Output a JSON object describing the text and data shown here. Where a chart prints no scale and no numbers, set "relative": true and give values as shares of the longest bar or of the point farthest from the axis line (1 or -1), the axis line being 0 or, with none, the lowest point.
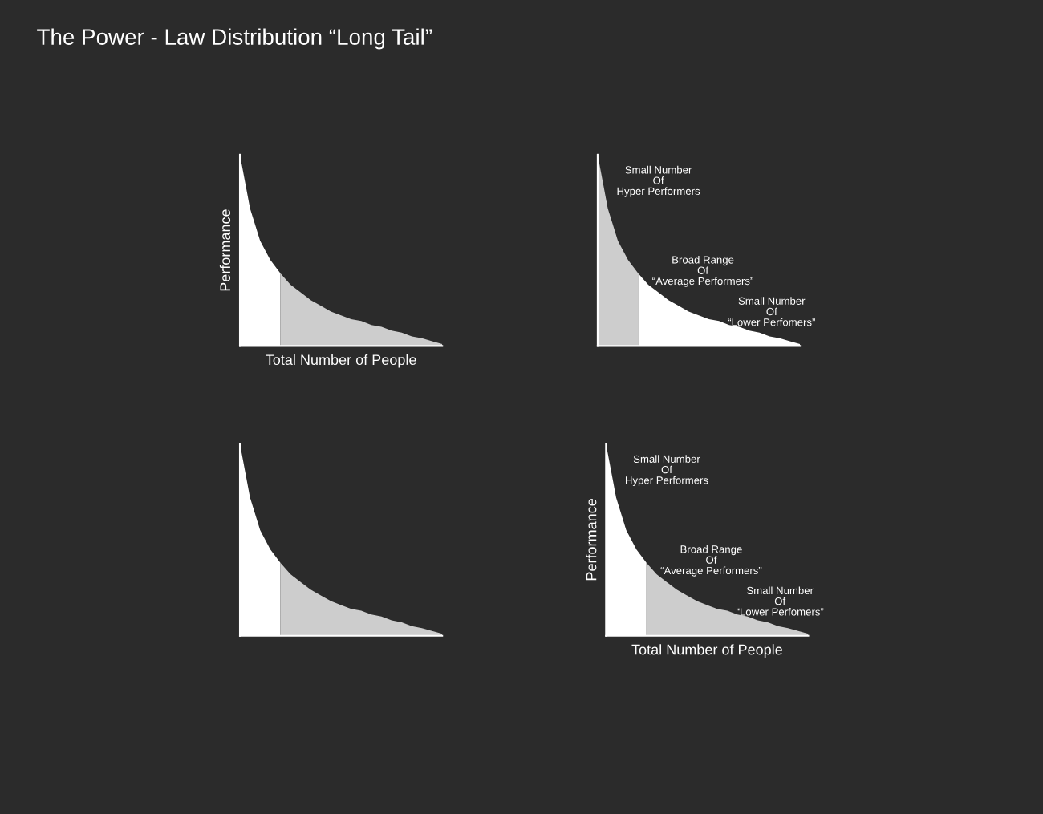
{
  "chart_data": [
    {
      "type": "area",
      "title": "The Power - Law Distribution “Long Tail”",
      "relative": true,
      "legend": false,
      "xlabel": "Total Number of People",
      "ylabel": "Performance",
      "categories": [
        null,
        null,
        null,
        null,
        null,
        null,
        null,
        null,
        null,
        null,
        null,
        null,
        null,
        null,
        null,
        null,
        null,
        null,
        null,
        null,
        null
      ],
      "series": [
        {
          "color": "#ffffff",
          "values": [
            1,
            0.72,
            0.55,
            0.45,
            0.38,
            null,
            null,
            null,
            null,
            null,
            null,
            null,
            null,
            null,
            null,
            null,
            null,
            null,
            null,
            null,
            null
          ]
        },
        {
          "color": "#cdcdcd",
          "values": [
            null,
            null,
            null,
            null,
            0.38,
            0.32,
            0.28,
            0.24,
            0.21,
            0.18,
            0.16,
            0.14,
            0.13,
            0.11,
            0.1,
            0.08,
            0.07,
            0.05,
            0.04,
            0.025,
            0.01
          ]
        }
      ]
    },
    {
      "type": "area",
      "relative": true,
      "legend": false,
      "annotations": [
        "Small Number\nOf\nHyper Performers",
        "Broad Range\nOf\n“Average Performers”",
        "Small Number\nOf\n“Lower Perfomers”"
      ],
      "categories": [
        null,
        null,
        null,
        null,
        null,
        null,
        null,
        null,
        null,
        null,
        null,
        null,
        null,
        null,
        null,
        null,
        null,
        null,
        null,
        null,
        null
      ],
      "series": [
        {
          "color": "#cdcdcd",
          "values": [
            1,
            0.72,
            0.55,
            0.45,
            0.38,
            null,
            null,
            null,
            null,
            null,
            null,
            null,
            null,
            null,
            null,
            null,
            null,
            null,
            null,
            null,
            null
          ]
        },
        {
          "color": "#ffffff",
          "values": [
            null,
            null,
            null,
            null,
            0.38,
            0.32,
            0.28,
            0.24,
            0.21,
            0.18,
            0.16,
            0.14,
            0.13,
            0.11,
            0.1,
            0.08,
            0.07,
            0.05,
            0.04,
            0.025,
            0.01
          ]
        }
      ]
    },
    {
      "type": "area",
      "relative": true,
      "legend": false,
      "categories": [
        null,
        null,
        null,
        null,
        null,
        null,
        null,
        null,
        null,
        null,
        null,
        null,
        null,
        null,
        null,
        null,
        null,
        null,
        null,
        null,
        null
      ],
      "series": [
        {
          "color": "#ffffff",
          "values": [
            1,
            0.72,
            0.55,
            0.45,
            0.38,
            null,
            null,
            null,
            null,
            null,
            null,
            null,
            null,
            null,
            null,
            null,
            null,
            null,
            null,
            null,
            null
          ]
        },
        {
          "color": "#cdcdcd",
          "values": [
            null,
            null,
            null,
            null,
            0.38,
            0.32,
            0.28,
            0.24,
            0.21,
            0.18,
            0.16,
            0.14,
            0.13,
            0.11,
            0.1,
            0.08,
            0.07,
            0.05,
            0.04,
            0.025,
            0.01
          ]
        }
      ]
    },
    {
      "type": "area",
      "relative": true,
      "legend": false,
      "xlabel": "Total Number of People",
      "ylabel": "Performance",
      "annotations": [
        "Small Number\nOf\nHyper Performers",
        "Broad Range\nOf\n“Average Performers”",
        "Small Number\nOf\n“Lower Perfomers”"
      ],
      "categories": [
        null,
        null,
        null,
        null,
        null,
        null,
        null,
        null,
        null,
        null,
        null,
        null,
        null,
        null,
        null,
        null,
        null,
        null,
        null,
        null,
        null
      ],
      "series": [
        {
          "color": "#ffffff",
          "values": [
            1,
            0.72,
            0.55,
            0.45,
            0.38,
            null,
            null,
            null,
            null,
            null,
            null,
            null,
            null,
            null,
            null,
            null,
            null,
            null,
            null,
            null,
            null
          ]
        },
        {
          "color": "#cdcdcd",
          "values": [
            null,
            null,
            null,
            null,
            0.38,
            0.32,
            0.28,
            0.24,
            0.21,
            0.18,
            0.16,
            0.14,
            0.13,
            0.11,
            0.1,
            0.08,
            0.07,
            0.05,
            0.04,
            0.025,
            0.01
          ]
        }
      ]
    }
  ]
}
